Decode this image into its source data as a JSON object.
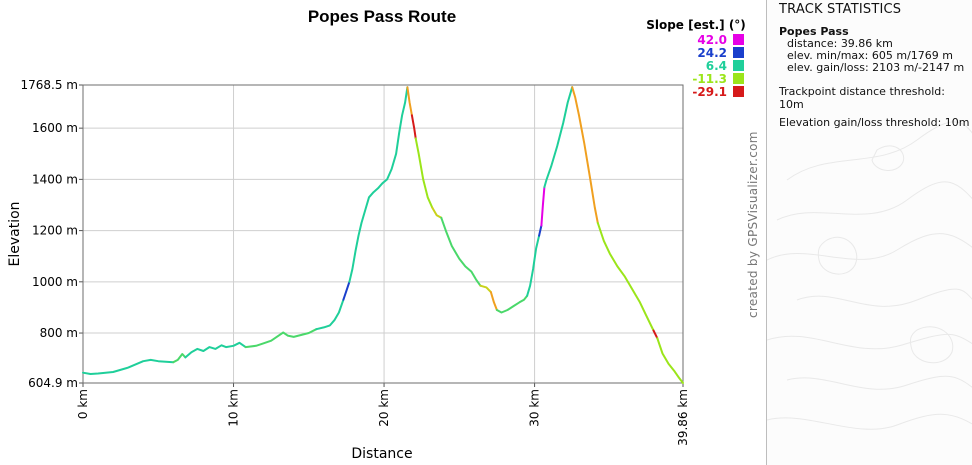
{
  "chart_data": {
    "type": "line",
    "title": "Popes Pass Route",
    "xlabel": "Distance",
    "ylabel": "Elevation",
    "x_unit": "km",
    "y_unit": "m",
    "xlim": [
      0,
      39.86
    ],
    "ylim": [
      604.9,
      1768.5
    ],
    "grid": true,
    "x_ticks": [
      {
        "value": 0,
        "label": "0 km"
      },
      {
        "value": 10,
        "label": "10 km"
      },
      {
        "value": 20,
        "label": "20 km"
      },
      {
        "value": 30,
        "label": "30 km"
      },
      {
        "value": 39.86,
        "label": "39.86 km"
      }
    ],
    "y_ticks": [
      {
        "value": 604.9,
        "label": "604.9 m"
      },
      {
        "value": 800,
        "label": "800 m"
      },
      {
        "value": 1000,
        "label": "1000 m"
      },
      {
        "value": 1200,
        "label": "1200 m"
      },
      {
        "value": 1400,
        "label": "1400 m"
      },
      {
        "value": 1600,
        "label": "1600 m"
      },
      {
        "value": 1768.5,
        "label": "1768.5 m"
      }
    ],
    "legend": {
      "title": "Slope [est.] (°)",
      "placement": "top-right",
      "entries": [
        {
          "label": "42.0",
          "color": "#e600e6"
        },
        {
          "label": "24.2",
          "color": "#1a3fcc"
        },
        {
          "label": "6.4",
          "color": "#1fcf9a"
        },
        {
          "label": "-11.3",
          "color": "#9be51a"
        },
        {
          "label": "-29.1",
          "color": "#d61a1a"
        }
      ]
    },
    "segments": [
      {
        "color": "#1fcf9a",
        "points": [
          [
            0,
            645
          ],
          [
            0.5,
            640
          ],
          [
            1,
            642
          ],
          [
            2,
            648
          ],
          [
            3,
            665
          ],
          [
            4,
            690
          ],
          [
            4.5,
            695
          ],
          [
            5,
            690
          ],
          [
            6,
            686
          ]
        ]
      },
      {
        "color": "#4ad86a",
        "points": [
          [
            6,
            686
          ],
          [
            6.3,
            695
          ],
          [
            6.6,
            718
          ],
          [
            6.8,
            705
          ]
        ]
      },
      {
        "color": "#1fcf9a",
        "points": [
          [
            6.8,
            705
          ],
          [
            7.2,
            725
          ],
          [
            7.6,
            738
          ],
          [
            8.0,
            730
          ],
          [
            8.4,
            745
          ],
          [
            8.8,
            738
          ],
          [
            9.2,
            752
          ],
          [
            9.5,
            745
          ],
          [
            10,
            750
          ],
          [
            10.4,
            762
          ],
          [
            10.8,
            745
          ]
        ]
      },
      {
        "color": "#4ad86a",
        "points": [
          [
            10.8,
            745
          ],
          [
            11.5,
            750
          ],
          [
            12,
            760
          ],
          [
            12.5,
            770
          ],
          [
            13,
            790
          ],
          [
            13.3,
            802
          ],
          [
            13.6,
            790
          ],
          [
            14,
            785
          ],
          [
            15,
            800
          ],
          [
            15.5,
            815
          ]
        ]
      },
      {
        "color": "#1fcf9a",
        "points": [
          [
            15.5,
            815
          ],
          [
            16,
            822
          ],
          [
            16.4,
            830
          ],
          [
            16.7,
            850
          ],
          [
            17,
            880
          ],
          [
            17.3,
            930
          ]
        ]
      },
      {
        "color": "#1a3fcc",
        "points": [
          [
            17.3,
            930
          ],
          [
            17.5,
            965
          ],
          [
            17.7,
            1000
          ]
        ]
      },
      {
        "color": "#1fcf9a",
        "points": [
          [
            17.7,
            1000
          ],
          [
            17.9,
            1050
          ],
          [
            18.1,
            1120
          ],
          [
            18.3,
            1180
          ],
          [
            18.5,
            1230
          ],
          [
            18.8,
            1290
          ],
          [
            19,
            1330
          ],
          [
            19.3,
            1350
          ],
          [
            19.6,
            1365
          ],
          [
            19.9,
            1385
          ],
          [
            20.2,
            1400
          ],
          [
            20.5,
            1440
          ],
          [
            20.8,
            1500
          ],
          [
            21,
            1580
          ],
          [
            21.2,
            1650
          ],
          [
            21.4,
            1700
          ],
          [
            21.55,
            1760
          ]
        ]
      },
      {
        "color": "#f0a020",
        "points": [
          [
            21.55,
            1760
          ],
          [
            21.7,
            1700
          ],
          [
            21.85,
            1650
          ]
        ]
      },
      {
        "color": "#d61a1a",
        "points": [
          [
            21.85,
            1650
          ],
          [
            22,
            1600
          ],
          [
            22.1,
            1560
          ]
        ]
      },
      {
        "color": "#9be51a",
        "points": [
          [
            22.1,
            1560
          ],
          [
            22.3,
            1500
          ],
          [
            22.6,
            1400
          ],
          [
            22.9,
            1330
          ],
          [
            23.2,
            1290
          ]
        ]
      },
      {
        "color": "#c9d21a",
        "points": [
          [
            23.2,
            1290
          ],
          [
            23.5,
            1260
          ],
          [
            23.8,
            1250
          ]
        ]
      },
      {
        "color": "#4ad86a",
        "points": [
          [
            23.8,
            1250
          ],
          [
            24.1,
            1200
          ],
          [
            24.5,
            1140
          ],
          [
            25,
            1090
          ],
          [
            25.4,
            1060
          ],
          [
            25.8,
            1040
          ],
          [
            26.1,
            1010
          ],
          [
            26.4,
            985
          ]
        ]
      },
      {
        "color": "#c9d21a",
        "points": [
          [
            26.4,
            985
          ],
          [
            26.8,
            978
          ],
          [
            27.1,
            960
          ]
        ]
      },
      {
        "color": "#f0a020",
        "points": [
          [
            27.1,
            960
          ],
          [
            27.3,
            920
          ],
          [
            27.5,
            890
          ]
        ]
      },
      {
        "color": "#4ad86a",
        "points": [
          [
            27.5,
            890
          ],
          [
            27.8,
            880
          ],
          [
            28.2,
            890
          ],
          [
            28.6,
            905
          ],
          [
            29,
            920
          ],
          [
            29.3,
            930
          ],
          [
            29.5,
            945
          ]
        ]
      },
      {
        "color": "#1fcf9a",
        "points": [
          [
            29.5,
            945
          ],
          [
            29.7,
            985
          ],
          [
            29.9,
            1050
          ],
          [
            30.1,
            1130
          ],
          [
            30.3,
            1180
          ]
        ]
      },
      {
        "color": "#1a3fcc",
        "points": [
          [
            30.3,
            1180
          ],
          [
            30.45,
            1220
          ]
        ]
      },
      {
        "color": "#e600e6",
        "points": [
          [
            30.45,
            1220
          ],
          [
            30.55,
            1300
          ],
          [
            30.65,
            1370
          ]
        ]
      },
      {
        "color": "#1fcf9a",
        "points": [
          [
            30.65,
            1370
          ],
          [
            30.8,
            1400
          ],
          [
            31.1,
            1450
          ],
          [
            31.5,
            1530
          ],
          [
            31.9,
            1620
          ],
          [
            32.2,
            1700
          ],
          [
            32.5,
            1760
          ]
        ]
      },
      {
        "color": "#f0a020",
        "points": [
          [
            32.5,
            1760
          ],
          [
            32.7,
            1720
          ],
          [
            32.95,
            1650
          ],
          [
            33.3,
            1540
          ],
          [
            33.7,
            1400
          ],
          [
            34,
            1290
          ],
          [
            34.2,
            1230
          ]
        ]
      },
      {
        "color": "#9be51a",
        "points": [
          [
            34.2,
            1230
          ],
          [
            34.6,
            1160
          ],
          [
            35,
            1110
          ],
          [
            35.5,
            1060
          ],
          [
            36,
            1020
          ],
          [
            36.5,
            970
          ],
          [
            37,
            920
          ],
          [
            37.4,
            870
          ],
          [
            37.9,
            810
          ]
        ]
      },
      {
        "color": "#d61a1a",
        "points": [
          [
            37.9,
            810
          ],
          [
            38.15,
            780
          ]
        ]
      },
      {
        "color": "#9be51a",
        "points": [
          [
            38.15,
            780
          ],
          [
            38.5,
            720
          ],
          [
            38.9,
            680
          ],
          [
            39.3,
            650
          ],
          [
            39.6,
            625
          ],
          [
            39.86,
            605
          ]
        ]
      }
    ]
  },
  "credit": "created by GPSVisualizer.com",
  "stats": {
    "title": "TRACK STATISTICS",
    "track_name": "Popes Pass",
    "distance": "distance: 39.86 km",
    "elev_minmax": "elev. min/max: 605 m/1769 m",
    "elev_gainloss": "elev. gain/loss: 2103 m/-2147 m",
    "trackpoint_threshold": "Trackpoint distance threshold: 10m",
    "elev_threshold": "Elevation gain/loss threshold: 10m"
  }
}
